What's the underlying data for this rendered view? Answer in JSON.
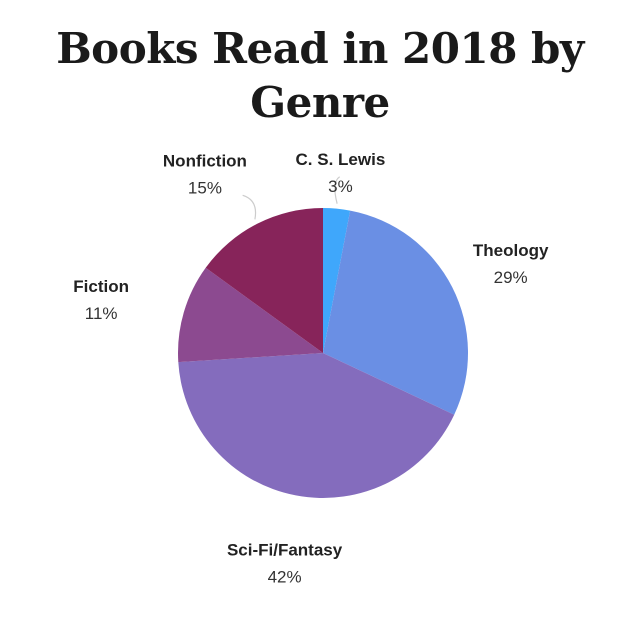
{
  "chart_data": {
    "type": "pie",
    "title": "Books Read in 2018 by Genre",
    "start_angle_deg": 0,
    "direction": "clockwise",
    "slices": [
      {
        "label": "C. S. Lewis",
        "percent_label": "3%",
        "value": 3,
        "color": "#3fa7fb"
      },
      {
        "label": "Theology",
        "percent_label": "29%",
        "value": 29,
        "color": "#6a8fe4"
      },
      {
        "label": "Sci-Fi/Fantasy",
        "percent_label": "42%",
        "value": 42,
        "color": "#846cbd"
      },
      {
        "label": "Fiction",
        "percent_label": "11%",
        "value": 11,
        "color": "#8c4a90"
      },
      {
        "label": "Nonfiction",
        "percent_label": "15%",
        "value": 15,
        "color": "#87245a"
      }
    ]
  }
}
